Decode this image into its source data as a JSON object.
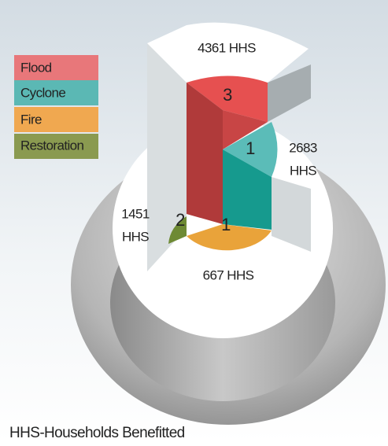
{
  "legend": [
    "Flood",
    "Cyclone",
    "Fire",
    "Restoration"
  ],
  "segments": [
    {
      "count": 3,
      "households": [
        "4361 HHS"
      ]
    },
    {
      "count": 1,
      "households": [
        "2683",
        "HHS"
      ]
    },
    {
      "count": 1,
      "households": [
        "667 HHS"
      ]
    },
    {
      "count": 2,
      "households": [
        "1451",
        "HHS"
      ]
    }
  ],
  "footnote": "HHS-Households Benefitted"
}
